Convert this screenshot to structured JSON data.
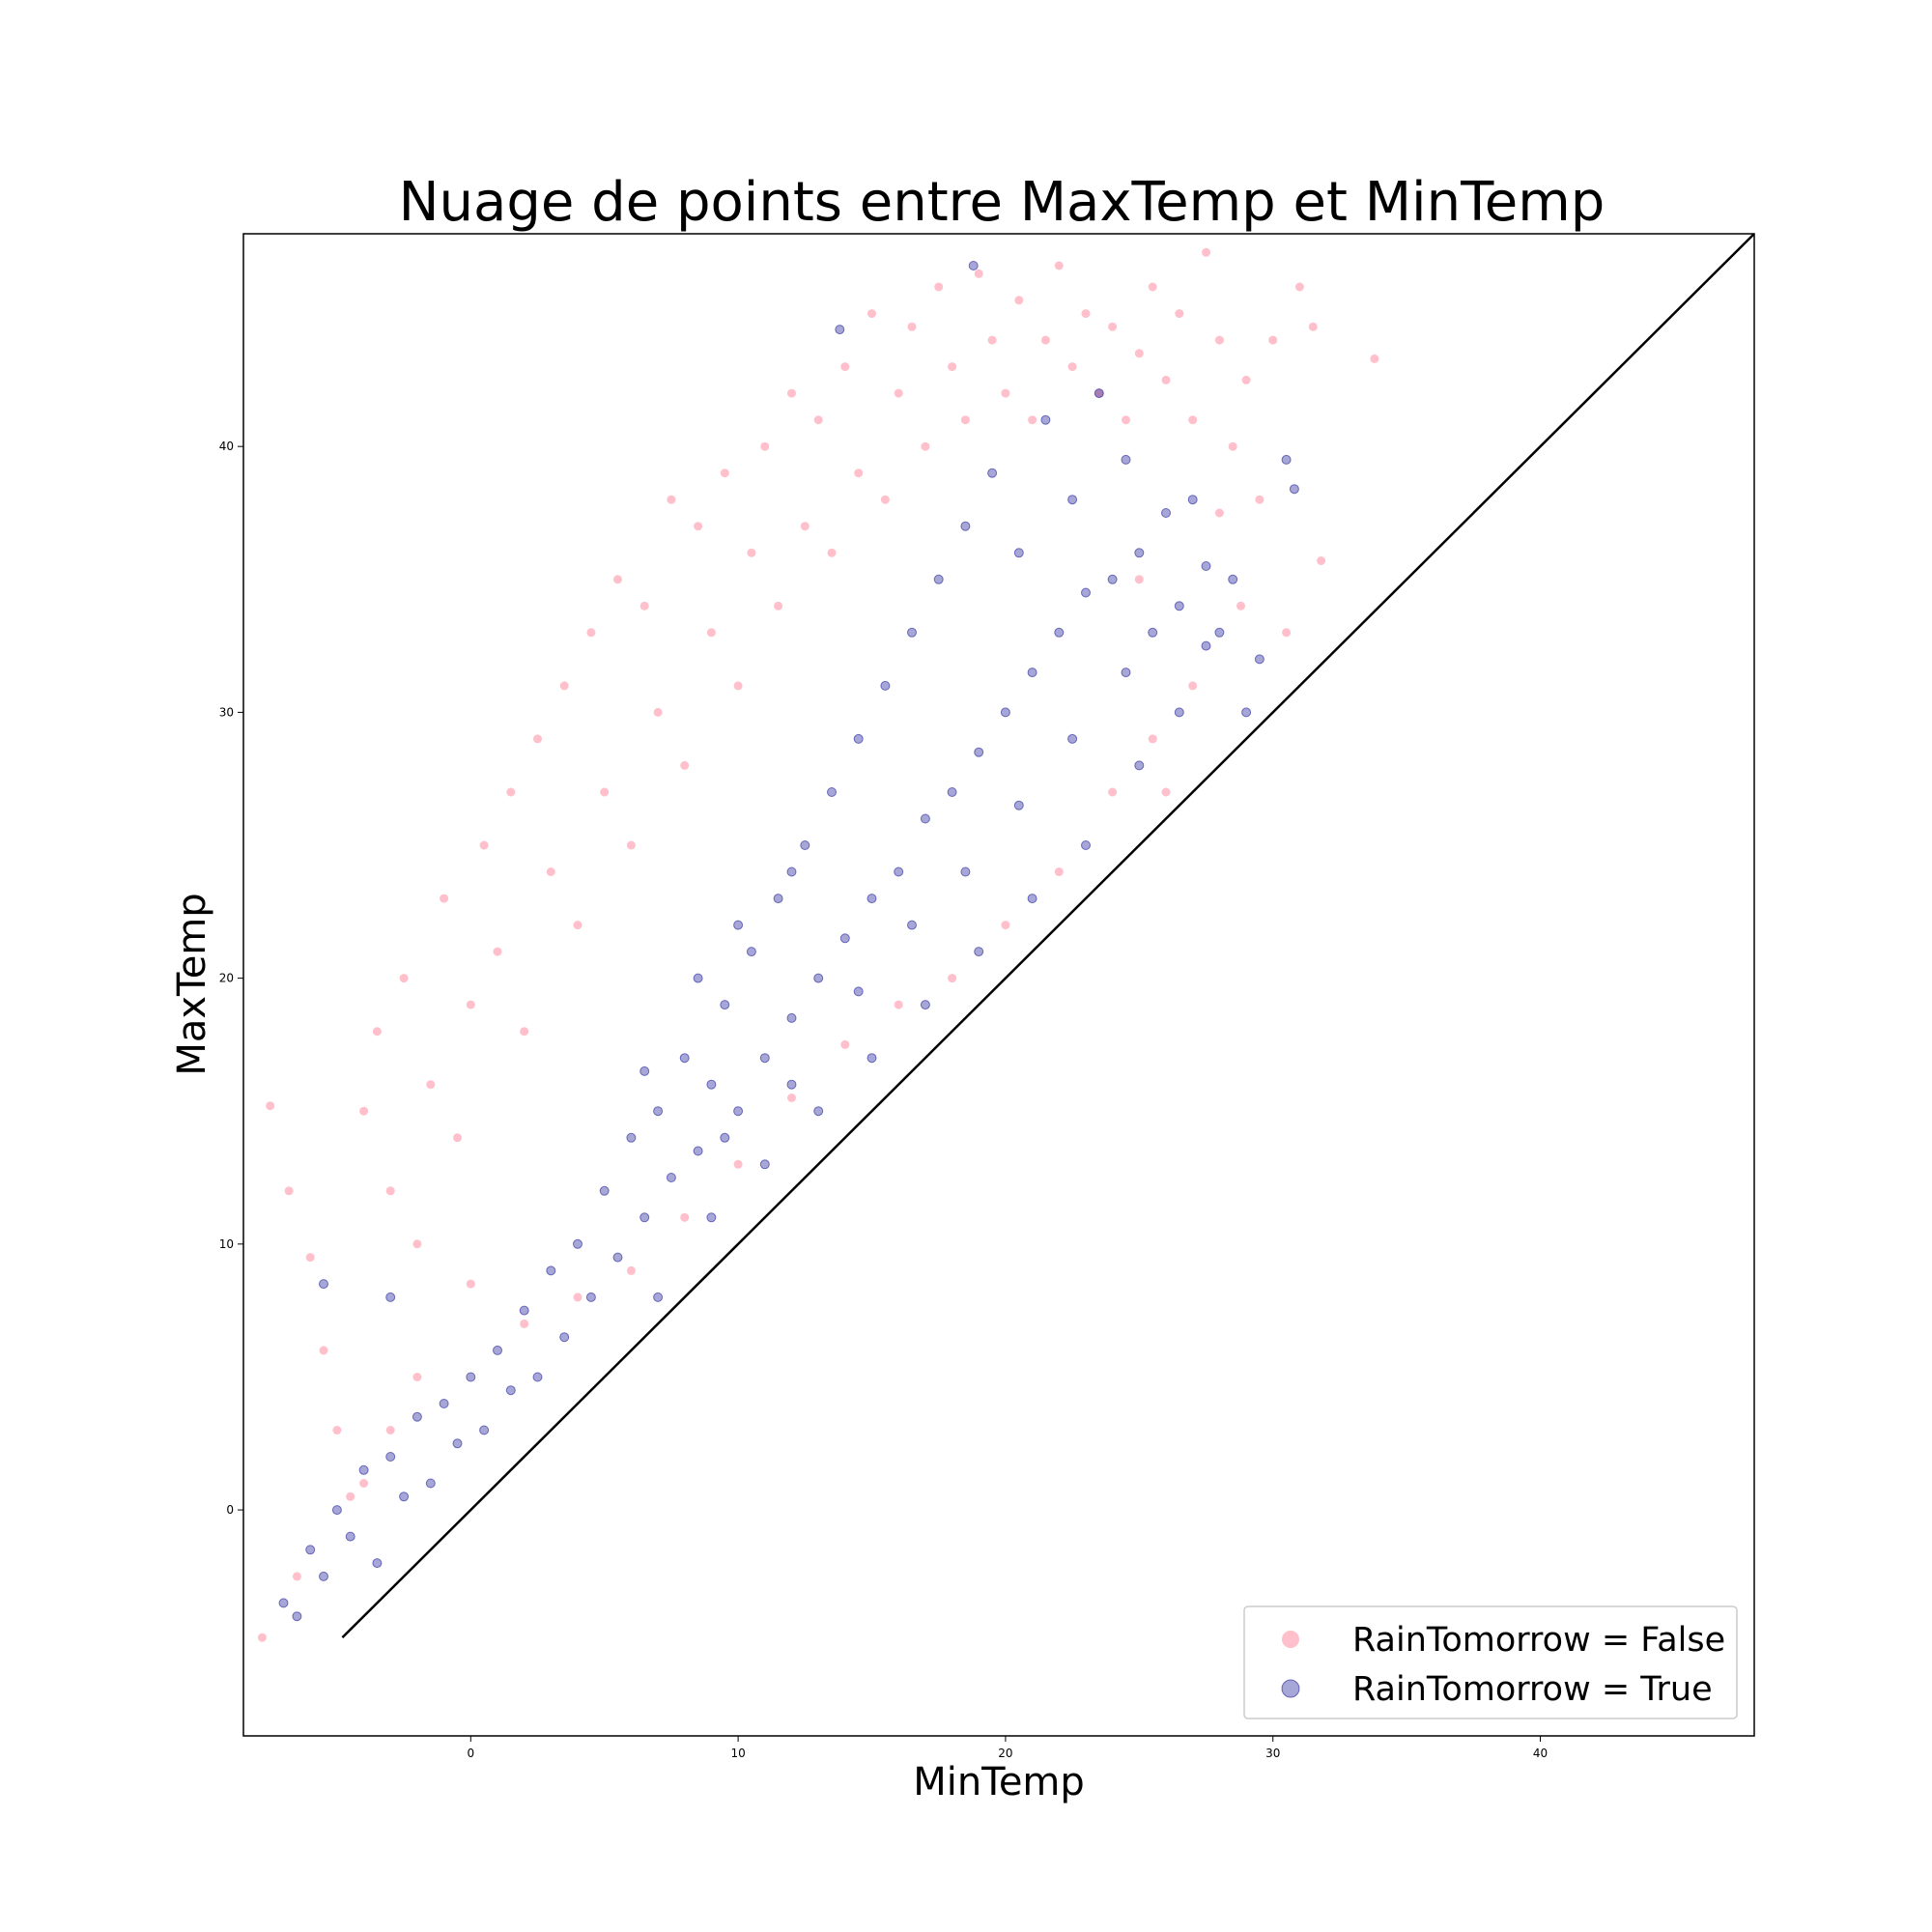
{
  "chart_data": {
    "type": "scatter",
    "title": "Nuage de points entre MaxTemp et MinTemp",
    "xlabel": "MinTemp",
    "ylabel": "MaxTemp",
    "xlim": [
      -8.5,
      48.0
    ],
    "ylim": [
      -8.5,
      48.0
    ],
    "xticks": [
      0,
      10,
      20,
      30,
      40
    ],
    "yticks": [
      0,
      10,
      20,
      30,
      40
    ],
    "grid": false,
    "legend_position": "lower-right",
    "reference_line": {
      "x": [
        -4.8,
        48.0
      ],
      "y": [
        -4.8,
        48.0
      ],
      "color": "#000000"
    },
    "series": [
      {
        "name": "RainTomorrow = False",
        "color": "#ffc0cb",
        "opacity": 1.0,
        "points": [
          [
            -7.5,
            15.2
          ],
          [
            -6.8,
            12.0
          ],
          [
            -6.0,
            9.5
          ],
          [
            -5.5,
            6.0
          ],
          [
            -5.0,
            3.0
          ],
          [
            -4.5,
            0.5
          ],
          [
            -6.5,
            -2.5
          ],
          [
            -7.8,
            -4.8
          ],
          [
            -4.0,
            15.0
          ],
          [
            -3.5,
            18.0
          ],
          [
            -3.0,
            12.0
          ],
          [
            -2.5,
            20.0
          ],
          [
            -2.0,
            10.0
          ],
          [
            -1.5,
            16.0
          ],
          [
            -1.0,
            23.0
          ],
          [
            -0.5,
            14.0
          ],
          [
            0.0,
            19.0
          ],
          [
            0.5,
            25.0
          ],
          [
            1.0,
            21.0
          ],
          [
            1.5,
            27.0
          ],
          [
            2.0,
            18.0
          ],
          [
            2.5,
            29.0
          ],
          [
            3.0,
            24.0
          ],
          [
            3.5,
            31.0
          ],
          [
            4.0,
            22.0
          ],
          [
            4.5,
            33.0
          ],
          [
            5.0,
            27.0
          ],
          [
            5.5,
            35.0
          ],
          [
            6.0,
            25.0
          ],
          [
            6.5,
            34.0
          ],
          [
            7.0,
            30.0
          ],
          [
            7.5,
            38.0
          ],
          [
            8.0,
            28.0
          ],
          [
            8.5,
            37.0
          ],
          [
            9.0,
            33.0
          ],
          [
            9.5,
            39.0
          ],
          [
            10.0,
            31.0
          ],
          [
            10.5,
            36.0
          ],
          [
            11.0,
            40.0
          ],
          [
            11.5,
            34.0
          ],
          [
            12.0,
            42.0
          ],
          [
            12.5,
            37.0
          ],
          [
            13.0,
            41.0
          ],
          [
            13.5,
            36.0
          ],
          [
            14.0,
            43.0
          ],
          [
            14.5,
            39.0
          ],
          [
            15.0,
            45.0
          ],
          [
            15.5,
            38.0
          ],
          [
            16.0,
            42.0
          ],
          [
            16.5,
            44.5
          ],
          [
            17.0,
            40.0
          ],
          [
            17.5,
            46.0
          ],
          [
            18.0,
            43.0
          ],
          [
            18.5,
            41.0
          ],
          [
            19.0,
            46.5
          ],
          [
            19.5,
            44.0
          ],
          [
            20.0,
            42.0
          ],
          [
            20.5,
            45.5
          ],
          [
            21.0,
            41.0
          ],
          [
            21.5,
            44.0
          ],
          [
            22.0,
            46.8
          ],
          [
            22.5,
            43.0
          ],
          [
            23.0,
            45.0
          ],
          [
            23.5,
            42.0
          ],
          [
            24.0,
            44.5
          ],
          [
            24.5,
            41.0
          ],
          [
            25.0,
            43.5
          ],
          [
            25.5,
            46.0
          ],
          [
            26.0,
            42.5
          ],
          [
            26.5,
            45.0
          ],
          [
            27.0,
            41.0
          ],
          [
            27.5,
            47.3
          ],
          [
            28.0,
            44.0
          ],
          [
            28.5,
            40.0
          ],
          [
            29.0,
            42.5
          ],
          [
            29.5,
            38.0
          ],
          [
            30.0,
            44.0
          ],
          [
            31.0,
            46.0
          ],
          [
            31.5,
            44.5
          ],
          [
            33.8,
            43.3
          ],
          [
            31.8,
            35.7
          ],
          [
            28.8,
            34.0
          ],
          [
            27.0,
            31.0
          ],
          [
            25.5,
            29.0
          ],
          [
            24.0,
            27.0
          ],
          [
            22.0,
            24.0
          ],
          [
            20.0,
            22.0
          ],
          [
            18.0,
            20.0
          ],
          [
            16.0,
            19.0
          ],
          [
            14.0,
            17.5
          ],
          [
            12.0,
            15.5
          ],
          [
            10.0,
            13.0
          ],
          [
            8.0,
            11.0
          ],
          [
            6.0,
            9.0
          ],
          [
            4.0,
            8.0
          ],
          [
            2.0,
            7.0
          ],
          [
            0.0,
            8.5
          ],
          [
            -2.0,
            5.0
          ],
          [
            -3.0,
            3.0
          ],
          [
            -4.0,
            1.0
          ],
          [
            26.0,
            27.0
          ],
          [
            25.0,
            35.0
          ],
          [
            30.5,
            33.0
          ],
          [
            28.0,
            37.5
          ]
        ]
      },
      {
        "name": "RainTomorrow = True",
        "color": "#00008b",
        "opacity": 0.35,
        "points": [
          [
            -7.0,
            -3.5
          ],
          [
            -6.5,
            -4.0
          ],
          [
            -6.0,
            -1.5
          ],
          [
            -5.5,
            -2.5
          ],
          [
            -5.0,
            0.0
          ],
          [
            -4.5,
            -1.0
          ],
          [
            -4.0,
            1.5
          ],
          [
            -3.5,
            -2.0
          ],
          [
            -3.0,
            2.0
          ],
          [
            -2.5,
            0.5
          ],
          [
            -2.0,
            3.5
          ],
          [
            -1.5,
            1.0
          ],
          [
            -1.0,
            4.0
          ],
          [
            -0.5,
            2.5
          ],
          [
            0.0,
            5.0
          ],
          [
            0.5,
            3.0
          ],
          [
            1.0,
            6.0
          ],
          [
            1.5,
            4.5
          ],
          [
            2.0,
            7.5
          ],
          [
            2.5,
            5.0
          ],
          [
            3.0,
            9.0
          ],
          [
            3.5,
            6.5
          ],
          [
            4.0,
            10.0
          ],
          [
            4.5,
            8.0
          ],
          [
            5.0,
            12.0
          ],
          [
            5.5,
            9.5
          ],
          [
            6.0,
            14.0
          ],
          [
            6.5,
            11.0
          ],
          [
            7.0,
            15.0
          ],
          [
            7.5,
            12.5
          ],
          [
            8.0,
            17.0
          ],
          [
            8.5,
            13.5
          ],
          [
            9.0,
            16.0
          ],
          [
            9.5,
            19.0
          ],
          [
            10.0,
            15.0
          ],
          [
            10.5,
            21.0
          ],
          [
            11.0,
            17.0
          ],
          [
            11.5,
            23.0
          ],
          [
            12.0,
            18.5
          ],
          [
            12.5,
            25.0
          ],
          [
            13.0,
            20.0
          ],
          [
            13.5,
            27.0
          ],
          [
            14.0,
            21.5
          ],
          [
            14.5,
            29.0
          ],
          [
            15.0,
            23.0
          ],
          [
            15.5,
            31.0
          ],
          [
            16.0,
            24.0
          ],
          [
            16.5,
            33.0
          ],
          [
            17.0,
            26.0
          ],
          [
            17.5,
            35.0
          ],
          [
            18.0,
            27.0
          ],
          [
            18.5,
            37.0
          ],
          [
            19.0,
            28.5
          ],
          [
            19.5,
            39.0
          ],
          [
            20.0,
            30.0
          ],
          [
            20.5,
            36.0
          ],
          [
            21.0,
            31.5
          ],
          [
            21.5,
            41.0
          ],
          [
            22.0,
            33.0
          ],
          [
            22.5,
            38.0
          ],
          [
            23.0,
            34.5
          ],
          [
            23.5,
            42.0
          ],
          [
            24.0,
            35.0
          ],
          [
            24.5,
            39.5
          ],
          [
            25.0,
            36.0
          ],
          [
            25.5,
            33.0
          ],
          [
            26.0,
            37.5
          ],
          [
            26.5,
            34.0
          ],
          [
            27.0,
            38.0
          ],
          [
            27.5,
            35.5
          ],
          [
            28.0,
            33.0
          ],
          [
            28.5,
            35.0
          ],
          [
            29.0,
            30.0
          ],
          [
            29.5,
            32.0
          ],
          [
            30.5,
            39.5
          ],
          [
            30.8,
            38.4
          ],
          [
            13.8,
            44.4
          ],
          [
            18.8,
            46.8
          ],
          [
            -5.5,
            8.5
          ],
          [
            -3.0,
            8.0
          ],
          [
            7.0,
            8.0
          ],
          [
            9.0,
            11.0
          ],
          [
            11.0,
            13.0
          ],
          [
            13.0,
            15.0
          ],
          [
            15.0,
            17.0
          ],
          [
            17.0,
            19.0
          ],
          [
            19.0,
            21.0
          ],
          [
            21.0,
            23.0
          ],
          [
            23.0,
            25.0
          ],
          [
            25.0,
            28.0
          ],
          [
            26.5,
            30.0
          ],
          [
            27.5,
            32.5
          ],
          [
            9.5,
            14.0
          ],
          [
            12.0,
            16.0
          ],
          [
            14.5,
            19.5
          ],
          [
            16.5,
            22.0
          ],
          [
            18.5,
            24.0
          ],
          [
            20.5,
            26.5
          ],
          [
            22.5,
            29.0
          ],
          [
            24.5,
            31.5
          ],
          [
            6.5,
            16.5
          ],
          [
            8.5,
            20.0
          ],
          [
            10.0,
            22.0
          ],
          [
            12.0,
            24.0
          ]
        ]
      }
    ]
  }
}
